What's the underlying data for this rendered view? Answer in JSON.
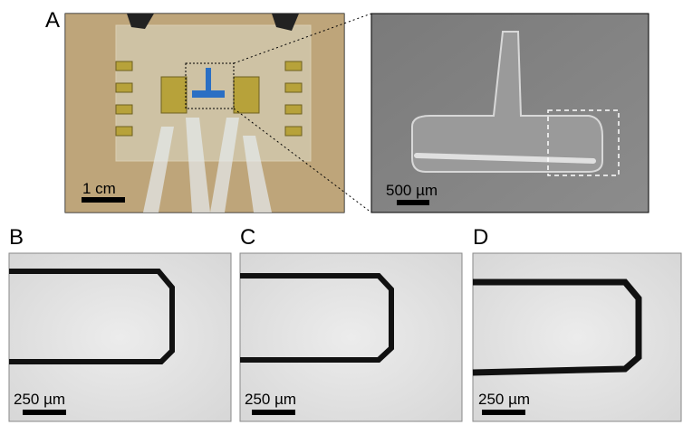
{
  "panel_a": {
    "label": "A",
    "photo_scale": "1 cm",
    "sem_scale": "500 µm"
  },
  "panel_b": {
    "label": "B",
    "scale": "250 µm"
  },
  "panel_c": {
    "label": "C",
    "scale": "250 µm"
  },
  "panel_d": {
    "label": "D",
    "scale": "250 µm"
  }
}
